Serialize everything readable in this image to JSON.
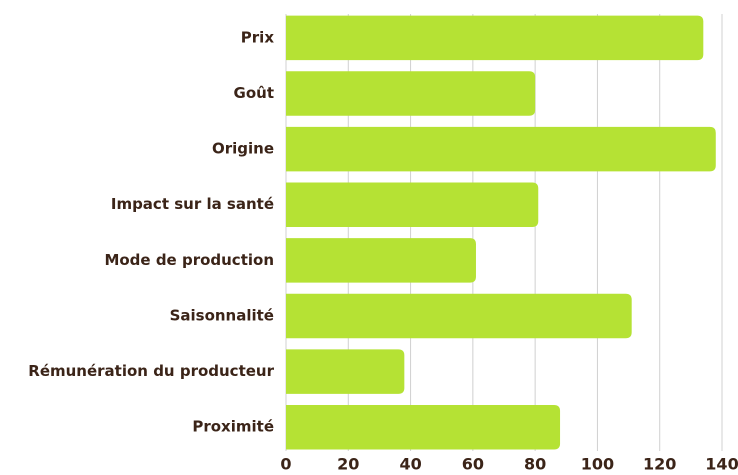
{
  "chart_data": {
    "type": "barh",
    "categories": [
      "Prix",
      "Goût",
      "Origine",
      "Impact sur la santé",
      "Mode de production",
      "Saisonnalité",
      "Rémunération du producteur",
      "Proximité"
    ],
    "values": [
      134,
      80,
      138,
      81,
      61,
      111,
      38,
      88
    ],
    "color": "#b5e234",
    "xlim": [
      0,
      140
    ],
    "xticks": [
      0,
      20,
      40,
      60,
      80,
      100,
      120,
      140
    ],
    "grid": true
  }
}
